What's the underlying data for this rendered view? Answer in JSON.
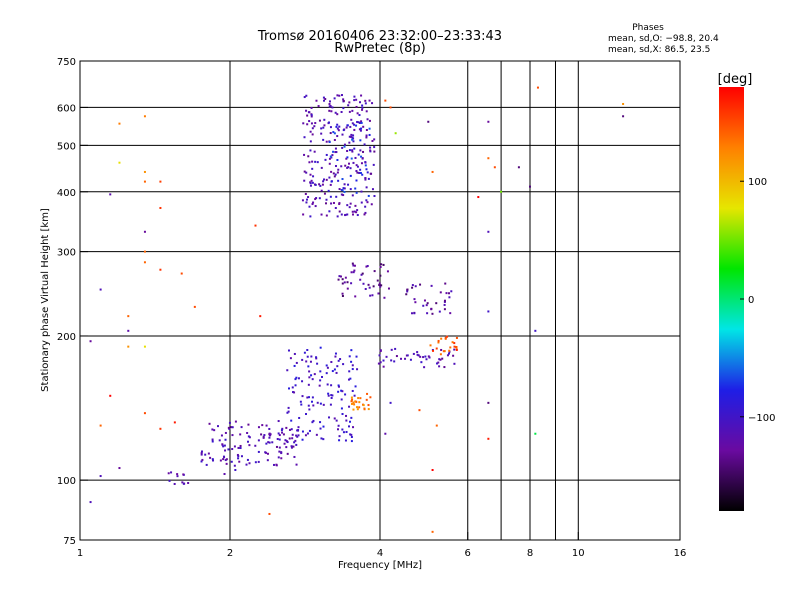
{
  "chart_data": {
    "type": "scatter",
    "title": "Tromsø 20160406 23:32:00–23:33:43",
    "subtitle": "RwPretec (8p)",
    "xlabel": "Frequency [MHz]",
    "ylabel": "Stationary phase Virtual Height [km]",
    "x_scale": "log",
    "y_scale": "log",
    "xlim": [
      1,
      16
    ],
    "ylim": [
      75,
      750
    ],
    "x_ticks": [
      1,
      2,
      4,
      6,
      8,
      10,
      16
    ],
    "x_tick_labels": [
      "1",
      "2",
      "4",
      "6",
      "8",
      "10",
      "16"
    ],
    "y_ticks": [
      75,
      100,
      200,
      300,
      400,
      500,
      600,
      750
    ],
    "y_tick_labels": [
      "75",
      "100",
      "200",
      "300",
      "400",
      "500",
      "600",
      "750"
    ],
    "grid": true,
    "stats": {
      "heading": "Phases",
      "line1": "mean, sd,O: −98.8, 20.4",
      "line2": "mean, sd,X:  86.5, 23.5"
    },
    "colorbar": {
      "label": "[deg]",
      "ticks": [
        100,
        0,
        -100
      ],
      "tick_labels": [
        "100",
        "0",
        "−100"
      ],
      "range": [
        -180,
        180
      ],
      "colors": [
        "#000000",
        "#6a0aa0",
        "#1e1ee6",
        "#00e6e6",
        "#00e600",
        "#e6e600",
        "#ff8000",
        "#ff0000"
      ]
    },
    "clusters": [
      {
        "x": [
          1.75,
          2.75
        ],
        "y": [
          107,
          133
        ],
        "phase": -115,
        "count": 130
      },
      {
        "x": [
          2.6,
          3.6
        ],
        "y": [
          120,
          190
        ],
        "phase": -100,
        "count": 140
      },
      {
        "x": [
          3.5,
          3.85
        ],
        "y": [
          138,
          152
        ],
        "phase": 130,
        "count": 24
      },
      {
        "x": [
          3.9,
          5.7
        ],
        "y": [
          172,
          188
        ],
        "phase": -115,
        "count": 45
      },
      {
        "x": [
          5.05,
          5.75
        ],
        "y": [
          182,
          200
        ],
        "phase": 150,
        "count": 22
      },
      {
        "x": [
          3.3,
          4.2
        ],
        "y": [
          240,
          285
        ],
        "phase": -130,
        "count": 45
      },
      {
        "x": [
          4.5,
          5.6
        ],
        "y": [
          222,
          258
        ],
        "phase": -125,
        "count": 35
      },
      {
        "x": [
          2.8,
          3.9
        ],
        "y": [
          355,
          640
        ],
        "phase": -115,
        "count": 260
      },
      {
        "x": [
          3.15,
          3.85
        ],
        "y": [
          390,
          560
        ],
        "phase": -80,
        "count": 45
      },
      {
        "x": [
          1.5,
          1.65
        ],
        "y": [
          98,
          104
        ],
        "phase": -110,
        "count": 12
      }
    ],
    "scattered_points": [
      {
        "x": 1.2,
        "y": 460,
        "phase": 80
      },
      {
        "x": 1.35,
        "y": 440,
        "phase": 120
      },
      {
        "x": 1.35,
        "y": 420,
        "phase": 140
      },
      {
        "x": 1.45,
        "y": 420,
        "phase": 155
      },
      {
        "x": 1.2,
        "y": 555,
        "phase": 130
      },
      {
        "x": 1.35,
        "y": 575,
        "phase": 130
      },
      {
        "x": 1.15,
        "y": 395,
        "phase": -120
      },
      {
        "x": 1.35,
        "y": 330,
        "phase": -130
      },
      {
        "x": 1.35,
        "y": 300,
        "phase": 140
      },
      {
        "x": 1.35,
        "y": 285,
        "phase": 140
      },
      {
        "x": 1.45,
        "y": 275,
        "phase": 160
      },
      {
        "x": 1.45,
        "y": 370,
        "phase": 160
      },
      {
        "x": 1.6,
        "y": 270,
        "phase": 150
      },
      {
        "x": 1.7,
        "y": 230,
        "phase": 150
      },
      {
        "x": 1.1,
        "y": 250,
        "phase": -110
      },
      {
        "x": 1.25,
        "y": 220,
        "phase": 140
      },
      {
        "x": 1.25,
        "y": 205,
        "phase": -120
      },
      {
        "x": 1.35,
        "y": 190,
        "phase": 80
      },
      {
        "x": 1.25,
        "y": 190,
        "phase": 120
      },
      {
        "x": 1.05,
        "y": 195,
        "phase": -130
      },
      {
        "x": 1.15,
        "y": 150,
        "phase": 180
      },
      {
        "x": 1.1,
        "y": 130,
        "phase": 140
      },
      {
        "x": 1.35,
        "y": 138,
        "phase": 150
      },
      {
        "x": 1.45,
        "y": 128,
        "phase": 160
      },
      {
        "x": 1.55,
        "y": 132,
        "phase": 170
      },
      {
        "x": 1.1,
        "y": 102,
        "phase": -110
      },
      {
        "x": 1.2,
        "y": 106,
        "phase": -130
      },
      {
        "x": 2.4,
        "y": 85,
        "phase": 150
      },
      {
        "x": 2.25,
        "y": 340,
        "phase": 160
      },
      {
        "x": 2.3,
        "y": 220,
        "phase": 170
      },
      {
        "x": 4.3,
        "y": 530,
        "phase": 60
      },
      {
        "x": 5.0,
        "y": 560,
        "phase": -140
      },
      {
        "x": 6.6,
        "y": 560,
        "phase": -130
      },
      {
        "x": 6.6,
        "y": 470,
        "phase": 140
      },
      {
        "x": 6.8,
        "y": 450,
        "phase": 150
      },
      {
        "x": 7.6,
        "y": 450,
        "phase": -140
      },
      {
        "x": 8.0,
        "y": 410,
        "phase": -140
      },
      {
        "x": 6.3,
        "y": 390,
        "phase": 180
      },
      {
        "x": 7.0,
        "y": 400,
        "phase": 50
      },
      {
        "x": 6.6,
        "y": 330,
        "phase": -110
      },
      {
        "x": 6.6,
        "y": 225,
        "phase": -100
      },
      {
        "x": 8.2,
        "y": 205,
        "phase": -100
      },
      {
        "x": 6.6,
        "y": 145,
        "phase": -140
      },
      {
        "x": 6.6,
        "y": 122,
        "phase": 170
      },
      {
        "x": 8.2,
        "y": 125,
        "phase": 10
      },
      {
        "x": 8.3,
        "y": 660,
        "phase": 150
      },
      {
        "x": 12.3,
        "y": 610,
        "phase": 120
      },
      {
        "x": 12.3,
        "y": 575,
        "phase": -140
      },
      {
        "x": 5.1,
        "y": 105,
        "phase": 180
      },
      {
        "x": 5.1,
        "y": 78,
        "phase": 140
      },
      {
        "x": 5.1,
        "y": 440,
        "phase": 140
      },
      {
        "x": 4.1,
        "y": 620,
        "phase": 150
      },
      {
        "x": 4.2,
        "y": 600,
        "phase": 150
      },
      {
        "x": 4.8,
        "y": 140,
        "phase": 150
      },
      {
        "x": 5.2,
        "y": 130,
        "phase": 140
      },
      {
        "x": 4.1,
        "y": 125,
        "phase": -120
      },
      {
        "x": 4.2,
        "y": 145,
        "phase": -100
      },
      {
        "x": 1.95,
        "y": 103,
        "phase": -120
      },
      {
        "x": 2.05,
        "y": 105,
        "phase": -100
      },
      {
        "x": 1.05,
        "y": 90,
        "phase": -110
      }
    ]
  }
}
